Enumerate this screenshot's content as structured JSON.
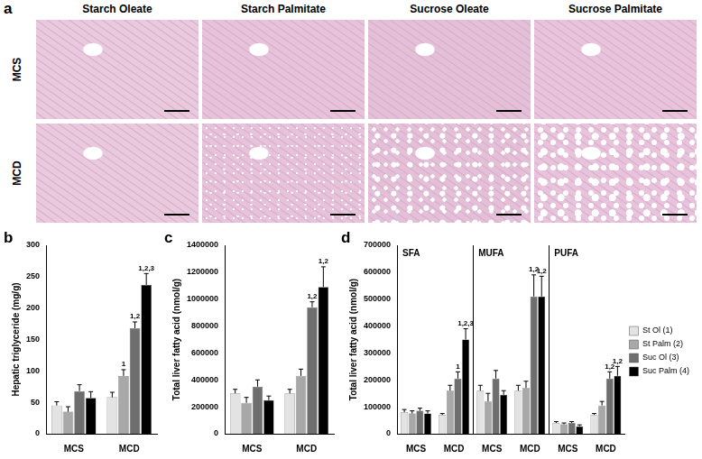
{
  "image_panel": {
    "panel": "a",
    "columns": [
      "Starch Oleate",
      "Starch Palmitate",
      "Sucrose Oleate",
      "Sucrose Palmitate"
    ],
    "rows": [
      "MCS",
      "MCD"
    ]
  },
  "chart_data": [
    {
      "panel": "b",
      "type": "bar",
      "y_label": "Hepatic triglyceride (mg/g)",
      "categories": [
        "MCS",
        "MCD"
      ],
      "series": [
        {
          "color": "#e3e3e3",
          "values": [
            45,
            58
          ],
          "errors": [
            6,
            8
          ],
          "sig_labels": [
            null,
            null
          ]
        },
        {
          "color": "#a8a8a8",
          "values": [
            35,
            92
          ],
          "errors": [
            8,
            10
          ],
          "sig_labels": [
            null,
            "1"
          ]
        },
        {
          "color": "#6e6e6e",
          "values": [
            68,
            168
          ],
          "errors": [
            10,
            10
          ],
          "sig_labels": [
            null,
            "1,2"
          ]
        },
        {
          "color": "#000000",
          "values": [
            57,
            237
          ],
          "errors": [
            10,
            18
          ],
          "sig_labels": [
            null,
            "1,2,3"
          ]
        }
      ],
      "ylim": [
        0,
        300
      ],
      "yticks": [
        0,
        50,
        100,
        150,
        200,
        250,
        300
      ],
      "grid": false
    },
    {
      "panel": "c",
      "type": "bar",
      "y_label": "Total liver fatty acid (nmol/g)",
      "categories": [
        "MCS",
        "MCD"
      ],
      "series": [
        {
          "color": "#e3e3e3",
          "values": [
            300000,
            300000
          ],
          "errors": [
            30000,
            30000
          ],
          "sig_labels": [
            null,
            null
          ]
        },
        {
          "color": "#a8a8a8",
          "values": [
            230000,
            430000
          ],
          "errors": [
            40000,
            50000
          ],
          "sig_labels": [
            null,
            null
          ]
        },
        {
          "color": "#6e6e6e",
          "values": [
            350000,
            940000
          ],
          "errors": [
            50000,
            40000
          ],
          "sig_labels": [
            null,
            "1,2"
          ]
        },
        {
          "color": "#000000",
          "values": [
            250000,
            1090000
          ],
          "errors": [
            30000,
            150000
          ],
          "sig_labels": [
            null,
            "1,2"
          ]
        }
      ],
      "ylim": [
        0,
        1400000
      ],
      "yticks": [
        0,
        200000,
        400000,
        600000,
        800000,
        1000000,
        1200000,
        1400000
      ],
      "grid": false
    },
    {
      "panel": "d",
      "type": "bar",
      "y_label": "Total liver fatty acid (nmol/g)",
      "categories": [
        "MCS",
        "MCD",
        "MCS",
        "MCD",
        "MCS",
        "MCD"
      ],
      "groups": [
        "SFA",
        "MUFA",
        "PUFA"
      ],
      "series": [
        {
          "name": "St Ol (1)",
          "color": "#e3e3e3",
          "values": [
            80000,
            70000,
            160000,
            160000,
            40000,
            70000
          ],
          "errors": [
            10000,
            5000,
            20000,
            20000,
            5000,
            5000
          ],
          "sig_labels": [
            null,
            null,
            null,
            null,
            null,
            null
          ]
        },
        {
          "name": "St Palm (2)",
          "color": "#a8a8a8",
          "values": [
            75000,
            160000,
            120000,
            170000,
            35000,
            105000
          ],
          "errors": [
            10000,
            20000,
            30000,
            25000,
            5000,
            15000
          ],
          "sig_labels": [
            null,
            null,
            null,
            null,
            null,
            null
          ]
        },
        {
          "name": "Suc Ol (3)",
          "color": "#6e6e6e",
          "values": [
            85000,
            205000,
            205000,
            510000,
            40000,
            205000
          ],
          "errors": [
            10000,
            25000,
            30000,
            80000,
            5000,
            25000
          ],
          "sig_labels": [
            null,
            "1",
            null,
            "1,2",
            null,
            "1,2"
          ]
        },
        {
          "name": "Suc Palm (4)",
          "color": "#000000",
          "values": [
            75000,
            350000,
            145000,
            510000,
            28000,
            215000
          ],
          "errors": [
            10000,
            40000,
            15000,
            75000,
            5000,
            35000
          ],
          "sig_labels": [
            null,
            "1,2,3",
            null,
            "1,2",
            null,
            "1,2"
          ]
        }
      ],
      "ylim": [
        0,
        700000
      ],
      "yticks": [
        0,
        100000,
        200000,
        300000,
        400000,
        500000,
        600000,
        700000
      ],
      "grid": false,
      "legend": "right"
    }
  ]
}
